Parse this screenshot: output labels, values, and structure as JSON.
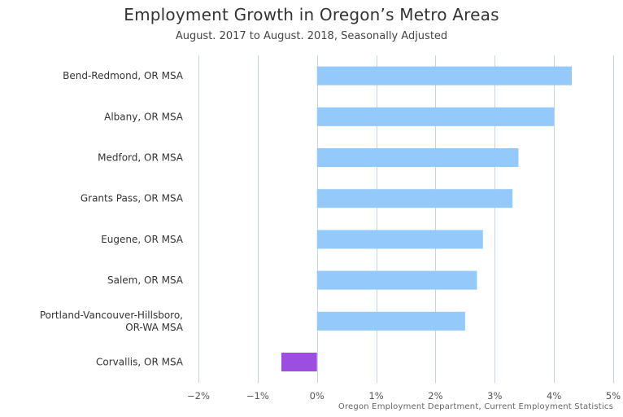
{
  "chart_data": {
    "type": "bar",
    "orientation": "horizontal",
    "title": "Employment Growth in Oregon’s Metro Areas",
    "subtitle": "August. 2017 to August. 2018, Seasonally Adjusted",
    "categories": [
      [
        "Bend-Redmond, OR MSA"
      ],
      [
        "Albany, OR MSA"
      ],
      [
        "Medford, OR MSA"
      ],
      [
        "Grants Pass, OR MSA"
      ],
      [
        "Eugene, OR MSA"
      ],
      [
        "Salem, OR MSA"
      ],
      [
        "Portland-Vancouver-Hillsboro,",
        "OR-WA MSA"
      ],
      [
        "Corvallis, OR MSA"
      ]
    ],
    "values": [
      4.3,
      4.0,
      3.4,
      3.3,
      2.8,
      2.7,
      2.5,
      -0.6
    ],
    "xlim": [
      -2,
      5
    ],
    "xticks": [
      -2,
      -1,
      0,
      1,
      2,
      3,
      4,
      5
    ],
    "tick_suffix": "%",
    "grid": true,
    "legend": "none",
    "colors": {
      "positive": "#93c9fb",
      "negative": "#9b4ee0",
      "grid": "#c6d3e2"
    },
    "credits": "Oregon Employment Department, Current Employment Statistics"
  }
}
